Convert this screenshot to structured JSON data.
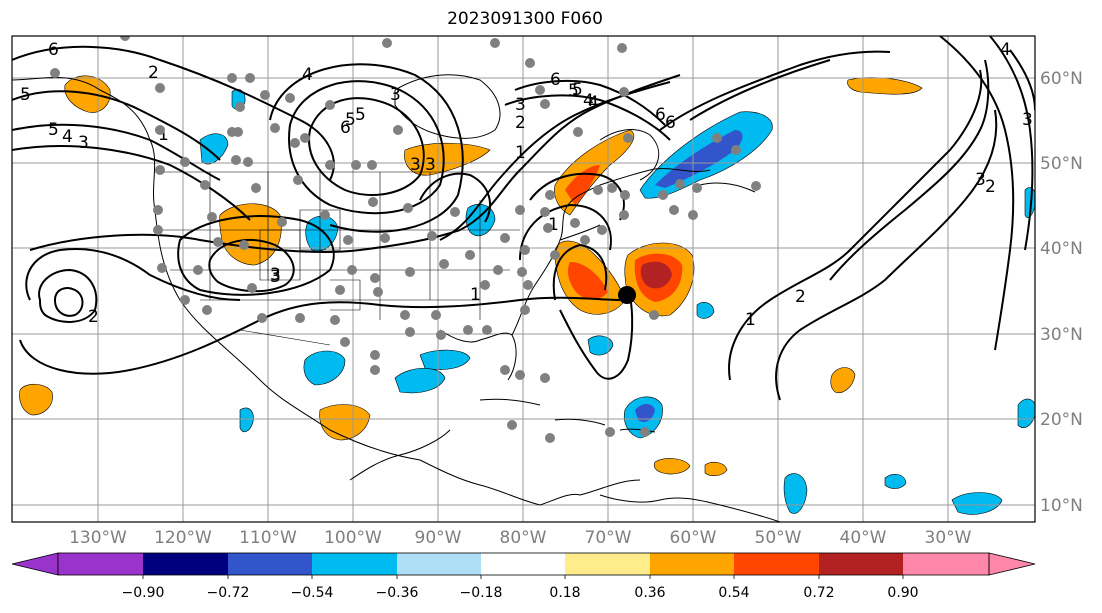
{
  "title": "2023091300 F060",
  "longitude_labels": [
    "130°W",
    "120°W",
    "110°W",
    "100°W",
    "90°W",
    "80°W",
    "70°W",
    "60°W",
    "50°W",
    "40°W",
    "30°W"
  ],
  "latitude_labels": [
    "60°N",
    "50°N",
    "40°N",
    "30°N",
    "20°N",
    "10°N"
  ],
  "colorbar": {
    "tick_labels": [
      "−0.90",
      "−0.72",
      "−0.54",
      "−0.36",
      "−0.18",
      "0.18",
      "0.36",
      "0.54",
      "0.72",
      "0.90"
    ],
    "colors": [
      "#9933cc",
      "#00007f",
      "#3355cc",
      "#00bbf0",
      "#aedff7",
      "#ffffff",
      "#ffec8b",
      "#ffa500",
      "#ff4500",
      "#b22222",
      "#ff88aa"
    ]
  },
  "contour_labels": [
    "6",
    "5",
    "4",
    "3",
    "1",
    "2",
    "3",
    "5",
    "6",
    "3",
    "5",
    "4",
    "3",
    "1",
    "6",
    "5",
    "4",
    "3",
    "6",
    "1",
    "3",
    "2",
    "2",
    "3",
    "2",
    "1",
    "2",
    "3",
    "4",
    "5",
    "1",
    "3",
    "4",
    "5",
    "6"
  ],
  "storm_center": {
    "label": "storm-center"
  },
  "map_features": [
    "coastlines",
    "country-borders",
    "us-state-borders",
    "lat-lon-grid",
    "geopotential-contours",
    "shaded-anomalies",
    "station-dots"
  ]
}
